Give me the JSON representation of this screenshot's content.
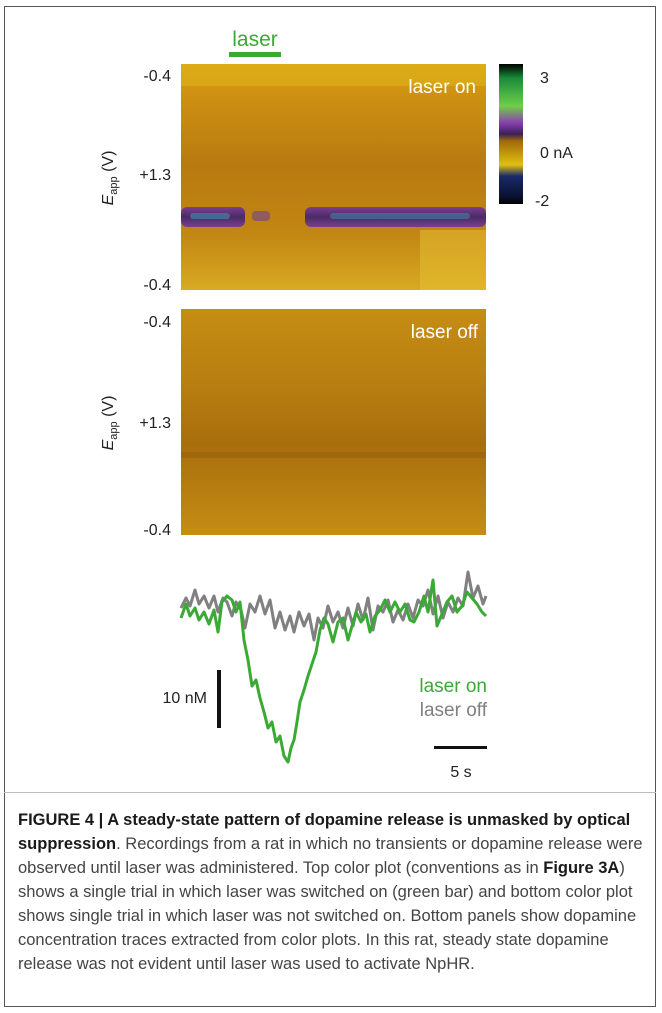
{
  "figure": {
    "laser_bar_label": "laser",
    "top_panel": {
      "label": "laser on",
      "y_ticks": [
        "-0.4",
        "+1.3",
        "-0.4"
      ],
      "y_axis_label": "E",
      "y_axis_sub": "app",
      "y_axis_unit": " (V)"
    },
    "bottom_panel": {
      "label": "laser off",
      "y_ticks": [
        "-0.4",
        "+1.3",
        "-0.4"
      ],
      "y_axis_label": "E",
      "y_axis_sub": "app",
      "y_axis_unit": " (V)"
    },
    "colorbar": {
      "ticks": [
        "3",
        "0 nA",
        "-2"
      ],
      "colors": [
        "#000000",
        "#1a8a3a",
        "#6fcf4a",
        "#8a3fb0",
        "#3a1f5a",
        "#b08f00",
        "#e2c010",
        "#0a1a4a",
        "#000000"
      ]
    },
    "traces": {
      "legend": [
        "laser on",
        "laser off"
      ],
      "colors": {
        "laser_on": "#3aaa35",
        "laser_off": "#808080"
      },
      "scale_bar_y": "10 nM",
      "scale_bar_x": "5 s"
    }
  },
  "caption": {
    "figure_label": "FIGURE 4 | A steady-state pattern of dopamine release is unmasked by optical suppression",
    "text_1": ". Recordings from a rat in which no transients or dopamine release were observed until laser was administered. Top color plot (conventions as in ",
    "ref": "Figure 3A",
    "text_2": ") shows a single trial in which laser was switched on (green bar) and bottom color plot shows single trial in which laser was not switched on. Bottom panels show dopamine concentration traces extracted from color plots. In this rat, steady state dopamine release was not evident until laser was used to activate NpHR."
  }
}
